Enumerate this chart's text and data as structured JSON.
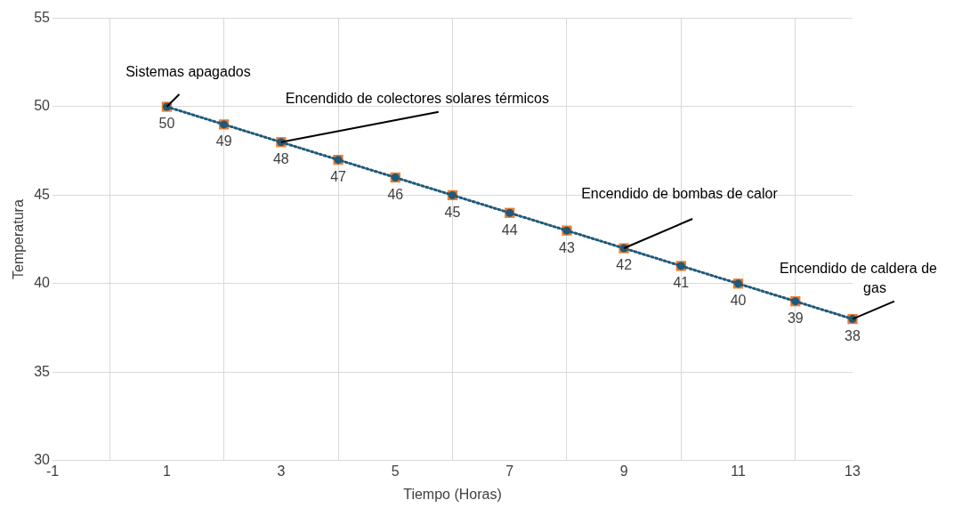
{
  "chart_data": {
    "type": "line",
    "xlabel": "Tiempo (Horas)",
    "ylabel": "Temperatura",
    "x": [
      1,
      2,
      3,
      4,
      5,
      6,
      7,
      8,
      9,
      10,
      11,
      12,
      13
    ],
    "series": [
      {
        "type": "scatter",
        "color": "#ed7d31",
        "marker": "square",
        "values": [
          50,
          49,
          48,
          47,
          46,
          45,
          44,
          43,
          42,
          41,
          40,
          39,
          38
        ],
        "value_labels": [
          "50",
          "49",
          "48",
          "47",
          "46",
          "45",
          "44",
          "43",
          "42",
          "41",
          "40",
          "39",
          "38"
        ]
      },
      {
        "color": "#1f5a7a",
        "marker": "circle",
        "line_style": "dotted",
        "values": [
          50,
          49,
          48,
          47,
          46,
          45,
          44,
          43,
          42,
          41,
          40,
          39,
          38
        ]
      }
    ],
    "xlim": [
      -1,
      13
    ],
    "xticks": [
      -1,
      {
        "value": 0,
        "label": null
      },
      1,
      {
        "value": 2,
        "label": null
      },
      3,
      {
        "value": 4,
        "label": null
      },
      5,
      {
        "value": 6,
        "label": null
      },
      7,
      {
        "value": 8,
        "label": null
      },
      9,
      {
        "value": 10,
        "label": null
      },
      11,
      {
        "value": 12,
        "label": null
      },
      13
    ],
    "ylim": [
      30,
      55
    ],
    "yticks": [
      30,
      35,
      40,
      45,
      50,
      55
    ],
    "grid": true,
    "legend": false,
    "annotations": [
      {
        "text": "Sistemas apagados",
        "x": 1,
        "y": 50
      },
      {
        "text": "Encendido de colectores solares térmicos",
        "x": 3,
        "y": 48
      },
      {
        "text": "Encendido de bombas de calor",
        "x": 9,
        "y": 42
      },
      {
        "text": "Encendido de caldera de gas",
        "x": 13,
        "y": 38
      }
    ]
  }
}
